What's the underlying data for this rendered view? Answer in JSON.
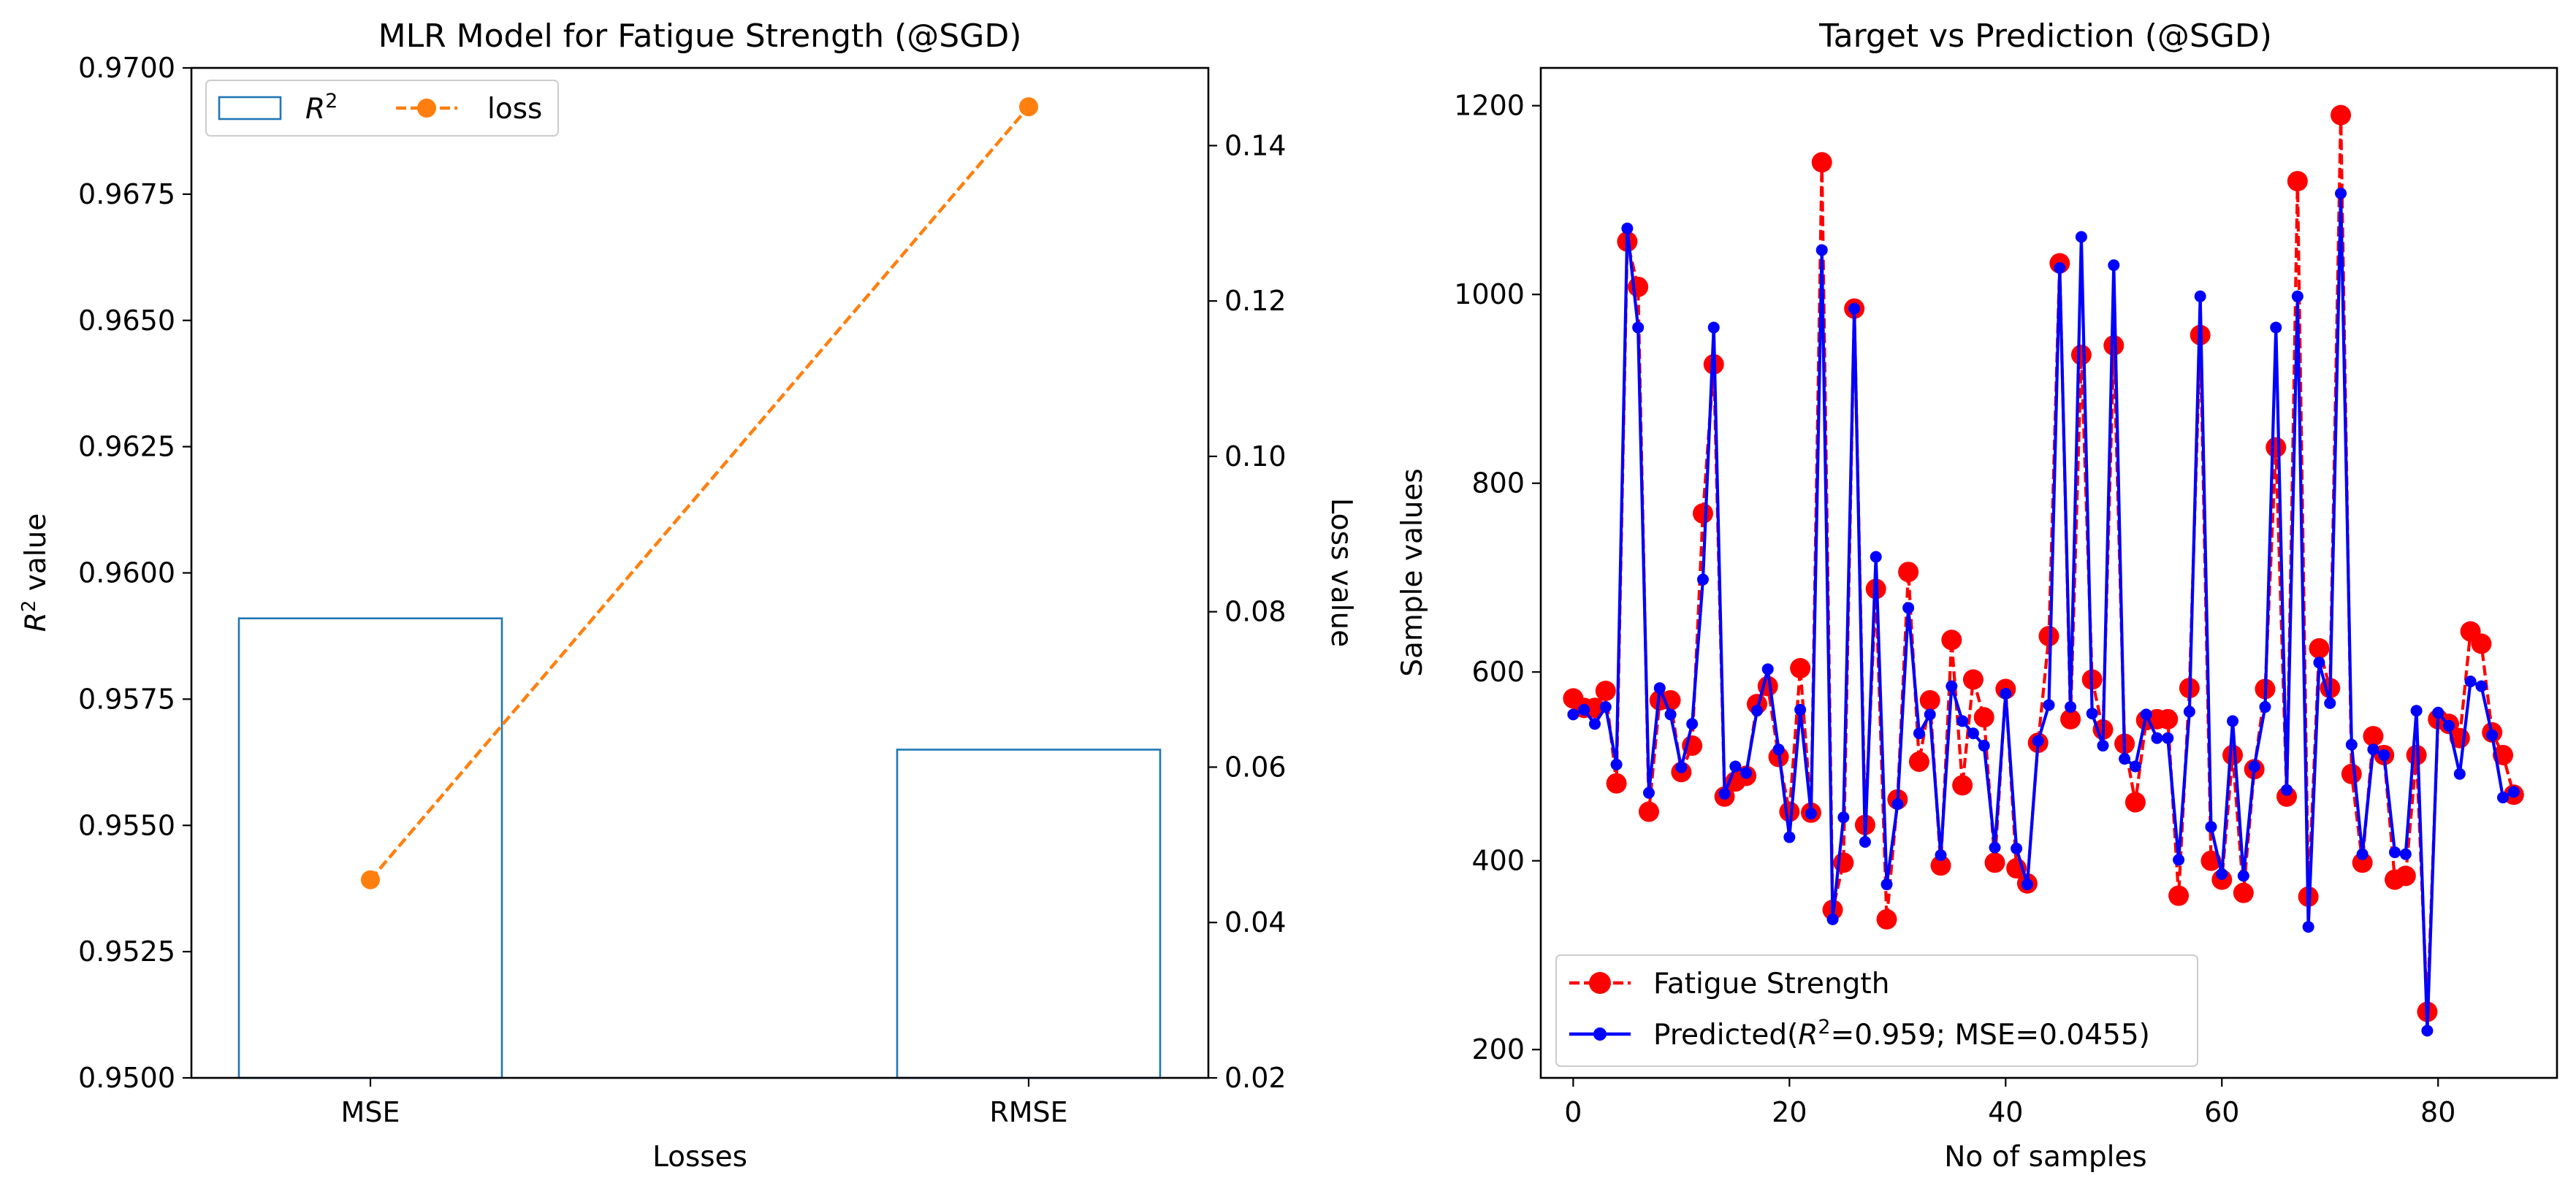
{
  "chart_data": [
    {
      "type": "bar",
      "title": "MLR Model for Fatigue Strength (@SGD)",
      "xlabel": "Losses",
      "ylabel": "R² value",
      "ylabel_right": "Loss value",
      "categories": [
        "MSE",
        "RMSE"
      ],
      "series": [
        {
          "name": "R²",
          "type": "bar",
          "axis": "left",
          "values": [
            0.9591,
            0.9565
          ],
          "color": "#1f77b4",
          "fill": "none"
        },
        {
          "name": "loss",
          "type": "line",
          "axis": "right",
          "values": [
            0.0455,
            0.145
          ],
          "color": "#ff7f0e",
          "style": "dashed",
          "marker": "circle"
        }
      ],
      "ylim": [
        0.95,
        0.97
      ],
      "ylim_right": [
        0.02,
        0.15
      ],
      "yticks": [
        "0.9500",
        "0.9525",
        "0.9550",
        "0.9575",
        "0.9600",
        "0.9625",
        "0.9650",
        "0.9675",
        "0.9700"
      ],
      "yticks_right": [
        "0.02",
        "0.04",
        "0.06",
        "0.08",
        "0.10",
        "0.12",
        "0.14"
      ],
      "legend_position": "upper-left",
      "grid": false
    },
    {
      "type": "line",
      "title": "Target vs Prediction (@SGD)",
      "xlabel": "No of samples",
      "ylabel": "Sample values",
      "xlim": [
        -3,
        91
      ],
      "ylim": [
        170,
        1240
      ],
      "xticks": [
        "0",
        "20",
        "40",
        "60",
        "80"
      ],
      "yticks": [
        "200",
        "400",
        "600",
        "800",
        "1000",
        "1200"
      ],
      "legend_position": "lower-left",
      "grid": false,
      "series": [
        {
          "name": "Fatigue Strength",
          "color": "#ff0000",
          "style": "dashed",
          "marker": "circle",
          "values": [
            572,
            562,
            562,
            580,
            482,
            1056,
            1008,
            452,
            570,
            570,
            494,
            522,
            768,
            926,
            468,
            484,
            490,
            566,
            585,
            510,
            452,
            604,
            451,
            1140,
            348,
            398,
            985,
            438,
            688,
            338,
            465,
            706,
            505,
            570,
            395,
            634,
            480,
            592,
            552,
            398,
            582,
            392,
            376,
            525,
            638,
            1033,
            550,
            936,
            592,
            539,
            946,
            524,
            462,
            549,
            550,
            550,
            363,
            583,
            957,
            400,
            380,
            512,
            366,
            497,
            582,
            838,
            468,
            1120,
            362,
            625,
            583,
            1190,
            492,
            398,
            532,
            512,
            380,
            384,
            512,
            240,
            550,
            545,
            530,
            643,
            630,
            536,
            512,
            470
          ]
        },
        {
          "name": "Predicted(R²=0.959; MSE=0.0455)",
          "color": "#0000ff",
          "style": "solid",
          "marker": "circle",
          "values": [
            555,
            560,
            545,
            563,
            502,
            1070,
            965,
            472,
            583,
            555,
            499,
            545,
            698,
            965,
            471,
            500,
            493,
            559,
            603,
            518,
            425,
            560,
            450,
            1047,
            338,
            446,
            985,
            420,
            722,
            375,
            460,
            668,
            535,
            555,
            406,
            585,
            548,
            535,
            522,
            414,
            577,
            413,
            375,
            527,
            565,
            1028,
            563,
            1061,
            556,
            522,
            1031,
            508,
            500,
            555,
            530,
            530,
            401,
            558,
            998,
            436,
            386,
            548,
            384,
            500,
            563,
            965,
            475,
            998,
            330,
            610,
            567,
            1107,
            523,
            407,
            518,
            512,
            409,
            407,
            559,
            220,
            557,
            543,
            492,
            590,
            585,
            533,
            467,
            473
          ]
        }
      ]
    }
  ]
}
